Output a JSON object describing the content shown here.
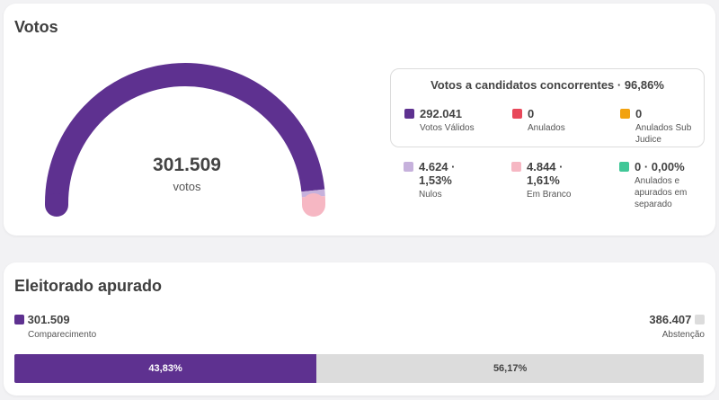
{
  "colors": {
    "valid": "#5e3190",
    "nullified": "#e8485a",
    "sub_judice": "#f2a20f",
    "null": "#c6b1dc",
    "blank": "#f6b7c3",
    "separate": "#40c797",
    "abstention": "#dcdcdc"
  },
  "votes": {
    "title": "Votos",
    "gauge": {
      "total": "301.509",
      "unit": "votos",
      "fractions": {
        "valid": 0.9686,
        "null": 0.0153,
        "blank": 0.0161
      }
    },
    "candidates_box": {
      "title": "Votos a candidatos concorrentes · 96,86%",
      "items": [
        {
          "value": "292.041",
          "label": "Votos Válidos"
        },
        {
          "value": "0",
          "label": "Anulados"
        },
        {
          "value": "0",
          "label": "Anulados Sub Judice"
        }
      ]
    },
    "other": [
      {
        "value": "4.624 · 1,53%",
        "label": "Nulos"
      },
      {
        "value": "4.844 · 1,61%",
        "label": "Em Branco"
      },
      {
        "value": "0 · 0,00%",
        "label": "Anulados e apurados em separado"
      }
    ]
  },
  "electorate": {
    "title": "Eleitorado apurado",
    "turnout": {
      "value": "301.509",
      "label": "Comparecimento",
      "percent_label": "43,83%",
      "fraction": 0.4383
    },
    "abstention": {
      "value": "386.407",
      "label": "Abstenção",
      "percent_label": "56,17%",
      "fraction": 0.5617
    }
  }
}
